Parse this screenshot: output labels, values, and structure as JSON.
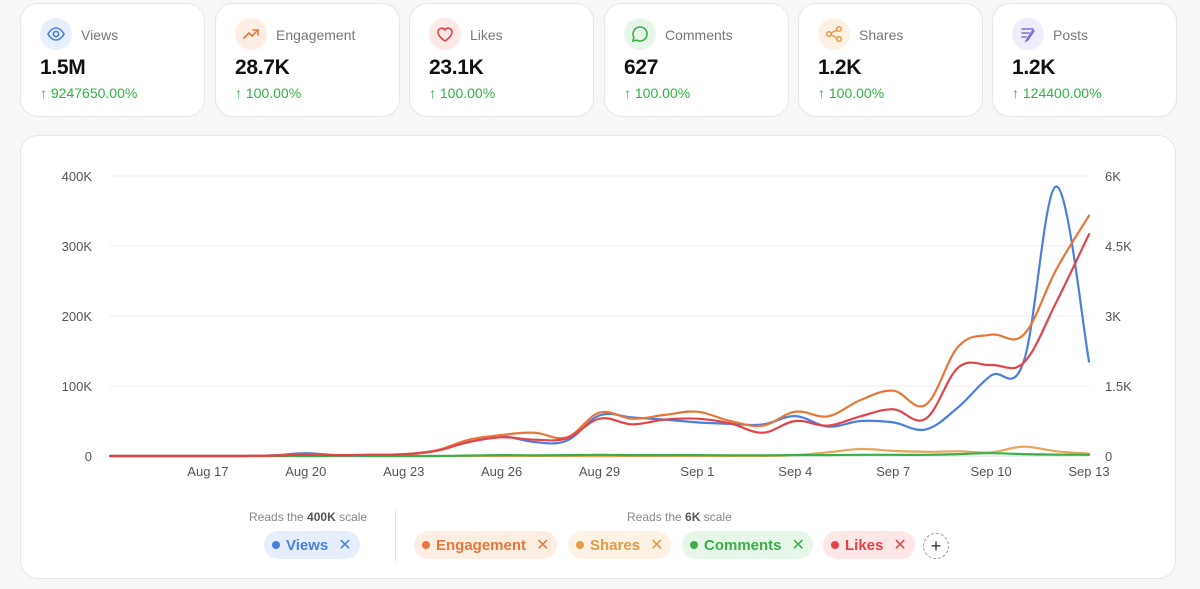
{
  "stats": [
    {
      "label": "Views",
      "value": "1.5M",
      "change": "9247650.00%",
      "icon": "eye-icon",
      "color": "#4a7fe0",
      "bg": "#e8effc"
    },
    {
      "label": "Engagement",
      "value": "28.7K",
      "change": "100.00%",
      "icon": "trending-up-icon",
      "color": "#e8763a",
      "bg": "#fdeee5"
    },
    {
      "label": "Likes",
      "value": "23.1K",
      "change": "100.00%",
      "icon": "heart-icon",
      "color": "#e0454a",
      "bg": "#fde8e8"
    },
    {
      "label": "Comments",
      "value": "627",
      "change": "100.00%",
      "icon": "chat-bubble-icon",
      "color": "#3cae4c",
      "bg": "#e6f6e8"
    },
    {
      "label": "Shares",
      "value": "1.2K",
      "change": "100.00%",
      "icon": "share-icon",
      "color": "#e59a45",
      "bg": "#fdf1e3"
    },
    {
      "label": "Posts",
      "value": "1.2K",
      "change": "124400.00%",
      "icon": "quill-icon",
      "color": "#7b6fd6",
      "bg": "#efedfb"
    }
  ],
  "change_arrow": "↑",
  "legend": {
    "left_note_prefix": "Reads the",
    "left_note_scale": "400K",
    "right_note_prefix": "Reads the",
    "right_note_scale": "6K",
    "note_suffix": "scale",
    "close_glyph": "✕",
    "add_glyph": "+"
  },
  "chart_data": {
    "type": "line",
    "x": [
      "Aug 14",
      "Aug 15",
      "Aug 16",
      "Aug 17",
      "Aug 18",
      "Aug 19",
      "Aug 20",
      "Aug 21",
      "Aug 22",
      "Aug 23",
      "Aug 24",
      "Aug 25",
      "Aug 26",
      "Aug 27",
      "Aug 28",
      "Aug 29",
      "Aug 30",
      "Aug 31",
      "Sep 1",
      "Sep 2",
      "Sep 3",
      "Sep 4",
      "Sep 5",
      "Sep 6",
      "Sep 7",
      "Sep 8",
      "Sep 9",
      "Sep 10",
      "Sep 11",
      "Sep 12",
      "Sep 13"
    ],
    "x_tick_labels": [
      "Aug 17",
      "Aug 20",
      "Aug 23",
      "Aug 26",
      "Aug 29",
      "Sep 1",
      "Sep 4",
      "Sep 7",
      "Sep 10",
      "Sep 13"
    ],
    "y_left": {
      "range": [
        0,
        400000
      ],
      "ticks": [
        "0",
        "100K",
        "200K",
        "300K",
        "400K"
      ]
    },
    "y_right": {
      "range": [
        0,
        6000
      ],
      "ticks": [
        "0",
        "1.5K",
        "3K",
        "4.5K",
        "6K"
      ]
    },
    "grid": true,
    "legend_position": "bottom",
    "series": [
      {
        "name": "Views",
        "axis": "left",
        "color": "#4a7fe0",
        "values": [
          0,
          0,
          0,
          0,
          0,
          1000,
          4000,
          1000,
          1500,
          2500,
          8000,
          20000,
          28000,
          20000,
          22000,
          58000,
          55000,
          52000,
          48000,
          46000,
          45000,
          57000,
          42000,
          50000,
          48000,
          38000,
          70000,
          115000,
          135000,
          385000,
          135000
        ]
      },
      {
        "name": "Engagement",
        "axis": "right",
        "color": "#e8763a",
        "values": [
          0,
          0,
          0,
          0,
          0,
          10,
          30,
          20,
          25,
          40,
          120,
          350,
          450,
          500,
          400,
          930,
          800,
          880,
          950,
          750,
          650,
          950,
          850,
          1200,
          1400,
          1100,
          2350,
          2600,
          2600,
          4000,
          5150
        ]
      },
      {
        "name": "Shares",
        "axis": "right",
        "color": "#e5a65a",
        "values": [
          0,
          0,
          0,
          0,
          0,
          0,
          0,
          0,
          0,
          0,
          0,
          0,
          0,
          0,
          0,
          0,
          0,
          0,
          0,
          0,
          0,
          20,
          80,
          150,
          110,
          90,
          100,
          80,
          200,
          100,
          50
        ]
      },
      {
        "name": "Comments",
        "axis": "right",
        "color": "#3cae4c",
        "values": [
          0,
          0,
          0,
          0,
          0,
          0,
          0,
          0,
          0,
          0,
          0,
          10,
          20,
          15,
          20,
          25,
          20,
          20,
          20,
          15,
          15,
          20,
          20,
          25,
          25,
          25,
          40,
          60,
          40,
          30,
          25
        ]
      },
      {
        "name": "Likes",
        "axis": "right",
        "color": "#e0454a",
        "values": [
          0,
          0,
          0,
          0,
          0,
          10,
          25,
          20,
          25,
          35,
          110,
          300,
          400,
          350,
          380,
          800,
          680,
          780,
          800,
          700,
          500,
          750,
          650,
          850,
          1000,
          800,
          1900,
          1950,
          2000,
          3300,
          4750
        ]
      }
    ]
  }
}
